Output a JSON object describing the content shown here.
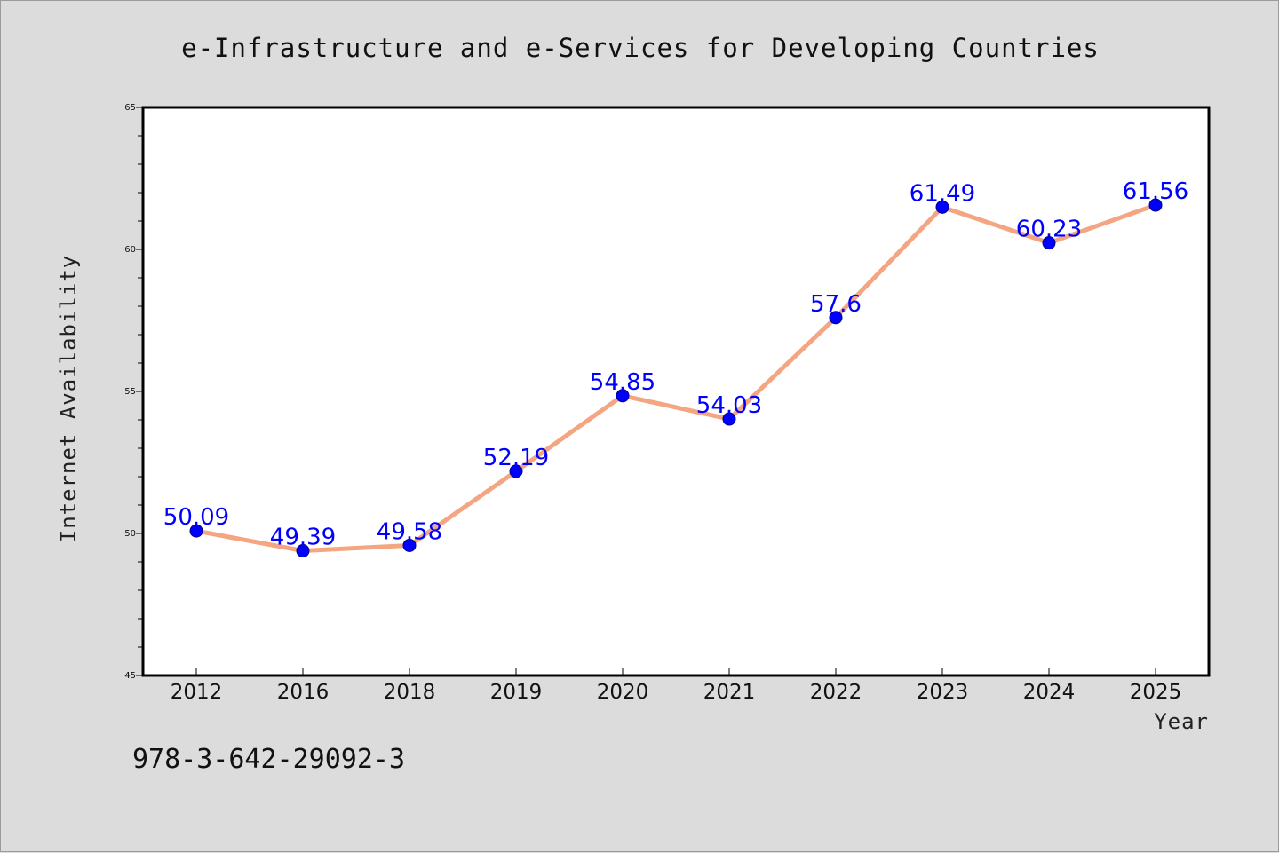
{
  "chart_data": {
    "type": "line",
    "title": "e-Infrastructure and e-Services for Developing Countries",
    "xlabel": "Year",
    "ylabel": "Internet Availability",
    "categories": [
      "2012",
      "2016",
      "2018",
      "2019",
      "2020",
      "2021",
      "2022",
      "2023",
      "2024",
      "2025"
    ],
    "series": [
      {
        "values": [
          50.09,
          49.39,
          49.58,
          52.19,
          54.85,
          54.03,
          57.6,
          61.49,
          60.23,
          61.56
        ],
        "labels": [
          "50.09",
          "49.39",
          "49.58",
          "52.19",
          "54.85",
          "54.03",
          "57.6",
          "61.49",
          "60.23",
          "61.56"
        ]
      }
    ],
    "ylim": [
      45,
      65
    ],
    "yticks": [
      "45",
      "50",
      "55",
      "60",
      "65"
    ],
    "grid": false,
    "colors": {
      "line": "#f4a582",
      "marker": "#0000ff",
      "label": "#0000ff"
    }
  },
  "footer_text": "978-3-642-29092-3"
}
